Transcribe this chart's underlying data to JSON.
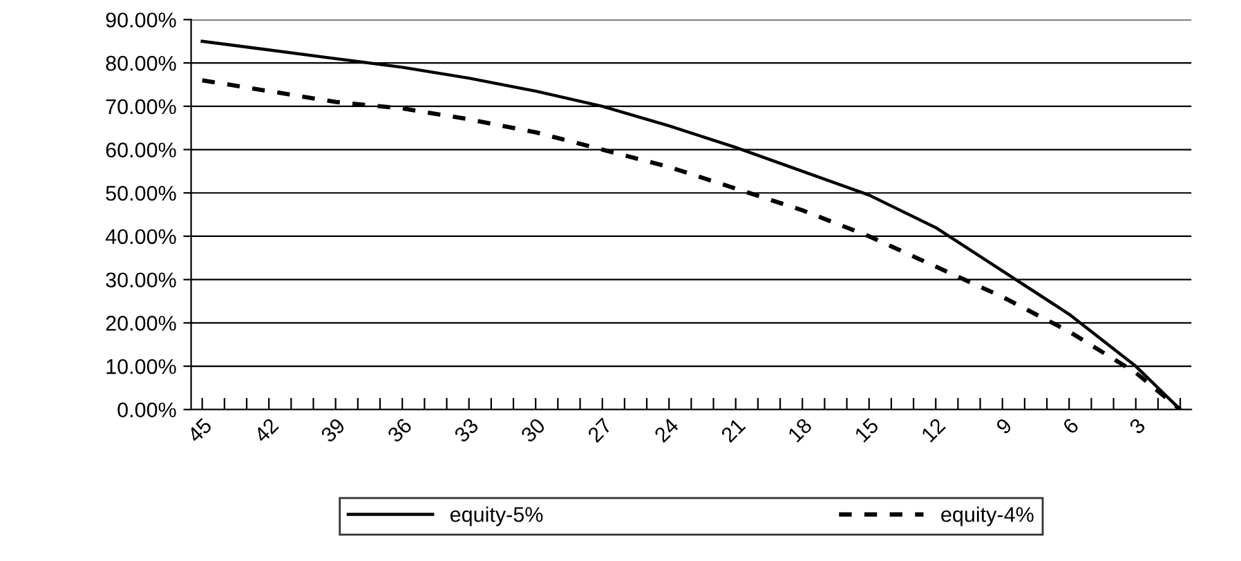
{
  "chart_data": {
    "type": "line",
    "x": [
      45,
      42,
      39,
      36,
      33,
      30,
      27,
      24,
      21,
      18,
      15,
      12,
      9,
      6,
      3,
      1
    ],
    "series": [
      {
        "name": "equity-5%",
        "color": "#000000",
        "line_style": "solid",
        "values": [
          85,
          83,
          81,
          79,
          76.5,
          73.5,
          70,
          65.5,
          60.5,
          55,
          49.5,
          42,
          32,
          22,
          10,
          0
        ]
      },
      {
        "name": "equity-4%",
        "color": "#000000",
        "line_style": "dashed",
        "values": [
          76,
          73.5,
          71,
          69.5,
          67,
          64,
          60,
          56,
          51,
          46,
          40,
          33,
          26,
          18,
          8.5,
          0
        ]
      }
    ],
    "xlim": [
      45.5,
      0.5
    ],
    "xticks": [
      45,
      {
        "value": 44,
        "label": null
      },
      {
        "value": 43,
        "label": null
      },
      42,
      {
        "value": 41,
        "label": null
      },
      {
        "value": 40,
        "label": null
      },
      39,
      {
        "value": 38,
        "label": null
      },
      {
        "value": 37,
        "label": null
      },
      36,
      {
        "value": 35,
        "label": null
      },
      {
        "value": 34,
        "label": null
      },
      33,
      {
        "value": 32,
        "label": null
      },
      {
        "value": 31,
        "label": null
      },
      30,
      {
        "value": 29,
        "label": null
      },
      {
        "value": 28,
        "label": null
      },
      27,
      {
        "value": 26,
        "label": null
      },
      {
        "value": 25,
        "label": null
      },
      24,
      {
        "value": 23,
        "label": null
      },
      {
        "value": 22,
        "label": null
      },
      21,
      {
        "value": 20,
        "label": null
      },
      {
        "value": 19,
        "label": null
      },
      18,
      {
        "value": 17,
        "label": null
      },
      {
        "value": 16,
        "label": null
      },
      15,
      {
        "value": 14,
        "label": null
      },
      {
        "value": 13,
        "label": null
      },
      12,
      {
        "value": 11,
        "label": null
      },
      {
        "value": 10,
        "label": null
      },
      9,
      {
        "value": 8,
        "label": null
      },
      {
        "value": 7,
        "label": null
      },
      6,
      {
        "value": 5,
        "label": null
      },
      {
        "value": 4,
        "label": null
      },
      3,
      {
        "value": 2,
        "label": null
      },
      {
        "value": 1,
        "label": null
      }
    ],
    "ylim": [
      0,
      90
    ],
    "yticks": [
      {
        "value": 0,
        "label": "0.00%"
      },
      {
        "value": 10,
        "label": "10.00%"
      },
      {
        "value": 20,
        "label": "20.00%"
      },
      {
        "value": 30,
        "label": "30.00%"
      },
      {
        "value": 40,
        "label": "40.00%"
      },
      {
        "value": 50,
        "label": "50.00%"
      },
      {
        "value": 60,
        "label": "60.00%"
      },
      {
        "value": 70,
        "label": "70.00%"
      },
      {
        "value": 80,
        "label": "80.00%"
      },
      {
        "value": 90,
        "label": "90.00%"
      }
    ],
    "grid": "y",
    "legend": "bottom",
    "marker": "none"
  }
}
